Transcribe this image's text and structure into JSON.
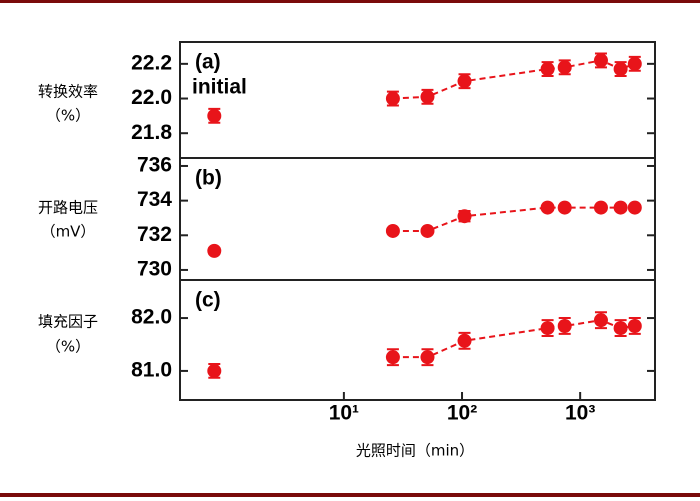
{
  "chart_data": [
    {
      "type": "line",
      "panel_label": "(a)",
      "annotation": "initial",
      "ylabel": [
        "转换效率",
        "（%）"
      ],
      "log_x": true,
      "xlim": [
        0.41,
        4300
      ],
      "ylim": [
        21.657,
        22.326
      ],
      "yticks": [
        21.8,
        {
          "value": 22,
          "label": "22.0"
        },
        22.2
      ],
      "series": [
        {
          "color": "#e8141a",
          "dashed": false,
          "x": [
            0.8
          ],
          "values": [
            21.9
          ],
          "errors": [
            0.04
          ]
        },
        {
          "color": "#e8141a",
          "dashed": true,
          "x": [
            26,
            51,
            105,
            530,
            740,
            1500,
            2200,
            2900
          ],
          "values": [
            22.0,
            22.01,
            22.1,
            22.17,
            22.18,
            22.22,
            22.17,
            22.2
          ],
          "errors": [
            0.04,
            0.04,
            0.04,
            0.04,
            0.04,
            0.04,
            0.04,
            0.04
          ]
        }
      ]
    },
    {
      "type": "line",
      "panel_label": "(b)",
      "ylabel": [
        "开路电压",
        "（mV）"
      ],
      "log_x": true,
      "xlim": [
        0.41,
        4300
      ],
      "ylim": [
        729.42,
        736.46
      ],
      "yticks": [
        730,
        732,
        734,
        736
      ],
      "series": [
        {
          "color": "#e8141a",
          "dashed": false,
          "x": [
            0.8
          ],
          "values": [
            731.1
          ],
          "errors": [
            0.15
          ]
        },
        {
          "color": "#e8141a",
          "dashed": true,
          "x": [
            26,
            51,
            105,
            530,
            740,
            1500,
            2200,
            2900
          ],
          "values": [
            732.25,
            732.25,
            733.1,
            733.6,
            733.6,
            733.6,
            733.6,
            733.6
          ],
          "errors": [
            0.15,
            0.15,
            0.3,
            0.15,
            0.15,
            0.15,
            0.15,
            0.15
          ]
        }
      ]
    },
    {
      "type": "line",
      "panel_label": "(c)",
      "ylabel": [
        "填充因子",
        "（%）"
      ],
      "xlabel": "光照时间（min）",
      "log_x": true,
      "xlim": [
        0.41,
        4300
      ],
      "ylim": [
        80.45,
        82.72
      ],
      "yticks": [
        {
          "value": 81,
          "label": "81.0"
        },
        {
          "value": 82,
          "label": "82.0"
        }
      ],
      "xticks": [
        {
          "value": 10,
          "label": "10¹"
        },
        {
          "value": 100,
          "label": "10²"
        },
        {
          "value": 1000,
          "label": "10³"
        }
      ],
      "series": [
        {
          "color": "#e8141a",
          "dashed": false,
          "x": [
            0.8
          ],
          "values": [
            81.0
          ],
          "errors": [
            0.13
          ]
        },
        {
          "color": "#e8141a",
          "dashed": true,
          "x": [
            26,
            51,
            105,
            530,
            740,
            1500,
            2200,
            2900
          ],
          "values": [
            81.26,
            81.26,
            81.57,
            81.81,
            81.85,
            81.96,
            81.81,
            81.85
          ],
          "errors": [
            0.15,
            0.15,
            0.15,
            0.15,
            0.15,
            0.15,
            0.15,
            0.15
          ]
        }
      ]
    }
  ]
}
